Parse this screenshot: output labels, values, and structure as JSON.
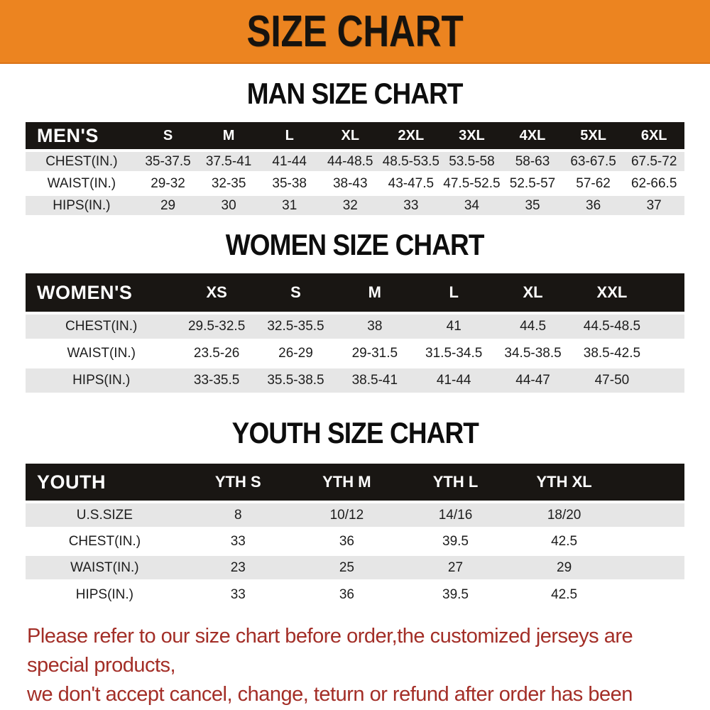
{
  "banner": {
    "title": "SIZE CHART",
    "bg_color": "#EC8420",
    "text_color": "#16130F"
  },
  "sections": [
    {
      "heading": "MAN SIZE CHART",
      "table": {
        "header_label": "MEN'S",
        "columns": [
          "S",
          "M",
          "L",
          "XL",
          "2XL",
          "3XL",
          "4XL",
          "5XL",
          "6XL"
        ],
        "rows": [
          {
            "label": "CHEST(IN.)",
            "values": [
              "35-37.5",
              "37.5-41",
              "41-44",
              "44-48.5",
              "48.5-53.5",
              "53.5-58",
              "58-63",
              "63-67.5",
              "67.5-72"
            ]
          },
          {
            "label": "WAIST(IN.)",
            "values": [
              "29-32",
              "32-35",
              "35-38",
              "38-43",
              "43-47.5",
              "47.5-52.5",
              "52.5-57",
              "57-62",
              "62-66.5"
            ]
          },
          {
            "label": "HIPS(IN.)",
            "values": [
              "29",
              "30",
              "31",
              "32",
              "33",
              "34",
              "35",
              "36",
              "37"
            ]
          }
        ]
      }
    },
    {
      "heading": "WOMEN SIZE CHART",
      "table": {
        "header_label": "WOMEN'S",
        "columns": [
          "XS",
          "S",
          "M",
          "L",
          "XL",
          "XXL"
        ],
        "rows": [
          {
            "label": "CHEST(IN.)",
            "values": [
              "29.5-32.5",
              "32.5-35.5",
              "38",
              "41",
              "44.5",
              "44.5-48.5"
            ]
          },
          {
            "label": "WAIST(IN.)",
            "values": [
              "23.5-26",
              "26-29",
              "29-31.5",
              "31.5-34.5",
              "34.5-38.5",
              "38.5-42.5"
            ]
          },
          {
            "label": "HIPS(IN.)",
            "values": [
              "33-35.5",
              "35.5-38.5",
              "38.5-41",
              "41-44",
              "44-47",
              "47-50"
            ]
          }
        ]
      }
    },
    {
      "heading": "YOUTH SIZE CHART",
      "table": {
        "header_label": "YOUTH",
        "columns": [
          "YTH S",
          "YTH M",
          "YTH L",
          "YTH XL"
        ],
        "rows": [
          {
            "label": "U.S.SIZE",
            "values": [
              "8",
              "10/12",
              "14/16",
              "18/20"
            ]
          },
          {
            "label": "CHEST(IN.)",
            "values": [
              "33",
              "36",
              "39.5",
              "42.5"
            ]
          },
          {
            "label": "WAIST(IN.)",
            "values": [
              "23",
              "25",
              "27",
              "29"
            ]
          },
          {
            "label": "HIPS(IN.)",
            "values": [
              "33",
              "36",
              "39.5",
              "42.5"
            ]
          }
        ]
      }
    }
  ],
  "disclaimer": {
    "line1": "Please refer to our size chart before order,the customized jerseys are special products,",
    "line2": "we don't accept cancel, change, teturn or refund after order has been placed!",
    "color": "#A32E27"
  }
}
